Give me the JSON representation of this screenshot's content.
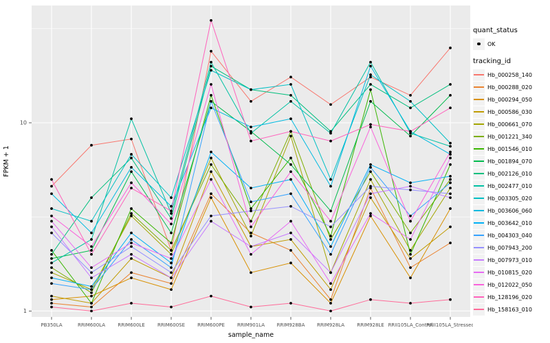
{
  "chart_data": {
    "type": "line",
    "title": "",
    "xlabel": "sample_name",
    "ylabel": "FPKM + 1",
    "yscale": "log10",
    "ylim": [
      0.93,
      42
    ],
    "grid": true,
    "legend_position": "right",
    "categories": [
      "PB350LA",
      "RRIM600LA",
      "RRIM600LE",
      "RRIM600SE",
      "RRIM600PE",
      "RRIM901LA",
      "RRIM928BA",
      "RRIM928LA",
      "RRIM928LE",
      "RRII105LA_Control",
      "RRII105LA_Stressed"
    ],
    "yaxis": {
      "ticks": [
        1,
        10
      ],
      "tick_labels": [
        "1",
        "10"
      ],
      "minor_gridlines": [
        3.162,
        31.62
      ]
    },
    "series": [
      {
        "name": "Hb_000258_140",
        "color": "#F8766D",
        "values": [
          4.6,
          7.6,
          8.2,
          2.1,
          24,
          13,
          17.5,
          12.5,
          17.5,
          14,
          25
        ]
      },
      {
        "name": "Hb_000288_020",
        "color": "#EA8331",
        "values": [
          1.1,
          1.05,
          1.6,
          1.4,
          4.2,
          2.6,
          2.1,
          1.15,
          4.5,
          1.7,
          2.3
        ]
      },
      {
        "name": "Hb_000294_050",
        "color": "#D89000",
        "values": [
          1.15,
          1.2,
          1.5,
          1.3,
          4.0,
          1.6,
          1.8,
          1.1,
          3.2,
          1.5,
          3.5
        ]
      },
      {
        "name": "Hb_000586_030",
        "color": "#C09B00",
        "values": [
          1.2,
          1.1,
          1.9,
          1.5,
          5.5,
          2.2,
          2.4,
          1.3,
          4.0,
          1.9,
          2.8
        ]
      },
      {
        "name": "Hb_000661_070",
        "color": "#A3A500",
        "values": [
          1.6,
          1.3,
          3.2,
          2.0,
          6.5,
          2.5,
          8.5,
          1.6,
          5.0,
          2.1,
          4.5
        ]
      },
      {
        "name": "Hb_001221_340",
        "color": "#7CAE00",
        "values": [
          1.7,
          1.25,
          3.3,
          2.1,
          6.0,
          3.0,
          9.0,
          2.4,
          5.5,
          2.6,
          5.0
        ]
      },
      {
        "name": "Hb_001546_010",
        "color": "#39B600",
        "values": [
          2.1,
          1.1,
          3.5,
          2.3,
          14,
          3.5,
          6.5,
          2.5,
          15,
          2.0,
          6.0
        ]
      },
      {
        "name": "Hb_001894_070",
        "color": "#00BB4E",
        "values": [
          1.9,
          2.1,
          5.5,
          2.6,
          13,
          9.0,
          6.0,
          3.4,
          13,
          8.5,
          14
        ]
      },
      {
        "name": "Hb_002126_010",
        "color": "#00BF7D",
        "values": [
          2.0,
          4.0,
          6.5,
          3.1,
          20,
          15,
          14,
          9.0,
          16,
          12,
          16
        ]
      },
      {
        "name": "Hb_002477_010",
        "color": "#00C1A3",
        "values": [
          1.8,
          2.4,
          10.5,
          3.3,
          21,
          8.8,
          13,
          8.8,
          21,
          8.8,
          7.5
        ]
      },
      {
        "name": "Hb_003305_020",
        "color": "#00BFC4",
        "values": [
          3.5,
          3.0,
          6.8,
          4.0,
          19,
          15,
          16,
          5.0,
          18,
          13,
          7.8
        ]
      },
      {
        "name": "Hb_003606_060",
        "color": "#00BAE0",
        "values": [
          4.2,
          2.6,
          5.8,
          3.6,
          12,
          9.5,
          10.5,
          4.6,
          20,
          9.0,
          6.8
        ]
      },
      {
        "name": "Hb_003642_010",
        "color": "#00B0F6",
        "values": [
          1.5,
          1.35,
          2.6,
          1.8,
          7.0,
          4.5,
          5.0,
          2.2,
          6.0,
          4.8,
          5.2
        ]
      },
      {
        "name": "Hb_004303_040",
        "color": "#35A2FF",
        "values": [
          1.4,
          1.3,
          2.4,
          1.7,
          13,
          3.8,
          4.2,
          2.0,
          5.8,
          3.2,
          4.8
        ]
      },
      {
        "name": "Hb_007943_200",
        "color": "#9590FF",
        "values": [
          2.6,
          1.6,
          2.2,
          1.6,
          3.2,
          3.4,
          3.6,
          2.8,
          4.6,
          4.4,
          4.2
        ]
      },
      {
        "name": "Hb_007973_010",
        "color": "#C77CFF",
        "values": [
          2.8,
          1.5,
          2.0,
          1.5,
          3.0,
          2.2,
          2.6,
          1.6,
          4.2,
          4.6,
          4.0
        ]
      },
      {
        "name": "Hb_010815_020",
        "color": "#E76BF3",
        "values": [
          3.0,
          1.7,
          2.3,
          1.9,
          5.0,
          2.0,
          3.0,
          1.4,
          3.3,
          2.4,
          6.5
        ]
      },
      {
        "name": "Hb_012022_050",
        "color": "#FA62DB",
        "values": [
          3.2,
          2.2,
          4.8,
          2.9,
          16,
          2.8,
          5.5,
          3.0,
          9.5,
          3.0,
          7.0
        ]
      },
      {
        "name": "Hb_128196_020",
        "color": "#FF62BC",
        "values": [
          5.0,
          2.0,
          4.5,
          3.4,
          35,
          8.0,
          9.0,
          8.0,
          9.8,
          9.0,
          12
        ]
      },
      {
        "name": "Hb_158163_010",
        "color": "#FF6A98",
        "values": [
          1.05,
          1.0,
          1.1,
          1.05,
          1.2,
          1.05,
          1.1,
          1.0,
          1.15,
          1.1,
          1.15
        ]
      }
    ],
    "style": {
      "panel_bg": "#EBEBEB",
      "grid_color": "#FFFFFF",
      "point_color": "#000000",
      "tick_text_color": "#4D4D4D",
      "axis_title_color": "#000000",
      "legend_key_bg": "#F2F2F2"
    }
  },
  "legend": {
    "quant_status": {
      "title": "quant_status",
      "items": [
        "OK"
      ]
    },
    "tracking_id": {
      "title": "tracking_id"
    }
  }
}
